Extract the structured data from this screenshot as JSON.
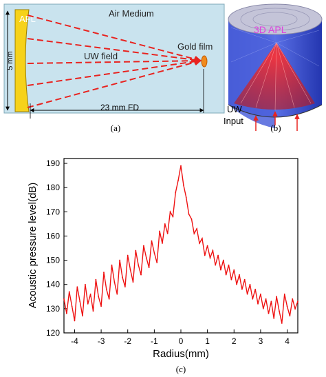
{
  "panel_a": {
    "lens_label": "AFL",
    "medium_label": "Air Medium",
    "field_label": "UW field",
    "target_label": "Gold film",
    "height_dim": "5 mm",
    "distance_dim": "23 mm FD",
    "caption": "(a)",
    "colors": {
      "background": "#c9e3ee",
      "lens": "#f6d21a",
      "rays": "#e8231f",
      "target": "#f08a1c"
    }
  },
  "panel_b": {
    "title": "3D APL",
    "input_label_1": "UW",
    "input_label_2": "Input",
    "caption": "(b)",
    "colors": {
      "title": "#e040e0",
      "cylinder": "#3a52d6",
      "beam": "#d8282a",
      "top_face": "#c4c4d8"
    }
  },
  "panel_c": {
    "caption": "(c)",
    "chart_data": {
      "type": "line",
      "title": "",
      "xlabel": "Radius(mm)",
      "ylabel": "Acoustic pressure level(dB)",
      "xlim": [
        -4.4,
        4.4
      ],
      "ylim": [
        120,
        192
      ],
      "xticks": [
        -4,
        -3,
        -2,
        -1,
        0,
        1,
        2,
        3,
        4
      ],
      "yticks": [
        120,
        130,
        140,
        150,
        160,
        170,
        180,
        190
      ],
      "grid": false,
      "color": "#ee1111",
      "series": [
        {
          "x": [
            -4.4,
            -4.3,
            -4.2,
            -4.1,
            -4.0,
            -3.9,
            -3.8,
            -3.7,
            -3.6,
            -3.5,
            -3.4,
            -3.3,
            -3.2,
            -3.1,
            -3.0,
            -2.9,
            -2.8,
            -2.7,
            -2.6,
            -2.5,
            -2.4,
            -2.3,
            -2.2,
            -2.1,
            -2.0,
            -1.9,
            -1.8,
            -1.7,
            -1.6,
            -1.5,
            -1.4,
            -1.3,
            -1.2,
            -1.1,
            -1.0,
            -0.9,
            -0.8,
            -0.7,
            -0.6,
            -0.5,
            -0.4,
            -0.3,
            -0.2,
            -0.1,
            0.0,
            0.1,
            0.2,
            0.3,
            0.4,
            0.5,
            0.6,
            0.7,
            0.8,
            0.9,
            1.0,
            1.1,
            1.2,
            1.3,
            1.4,
            1.5,
            1.6,
            1.7,
            1.8,
            1.9,
            2.0,
            2.1,
            2.2,
            2.3,
            2.4,
            2.5,
            2.6,
            2.7,
            2.8,
            2.9,
            3.0,
            3.1,
            3.2,
            3.3,
            3.4,
            3.5,
            3.6,
            3.7,
            3.8,
            3.9,
            4.0,
            4.1,
            4.2,
            4.3,
            4.4
          ],
          "values": [
            134,
            128,
            137,
            131,
            125,
            139,
            133,
            127,
            140,
            132,
            136,
            129,
            142,
            135,
            131,
            145,
            138,
            134,
            148,
            141,
            136,
            150,
            143,
            139,
            152,
            146,
            141,
            154,
            148,
            144,
            156,
            151,
            147,
            158,
            153,
            149,
            162,
            157,
            165,
            161,
            170,
            168,
            178,
            183,
            189,
            181,
            176,
            169,
            167,
            161,
            163,
            157,
            159,
            152,
            156,
            151,
            154,
            148,
            152,
            146,
            150,
            144,
            148,
            142,
            146,
            140,
            144,
            138,
            142,
            136,
            140,
            134,
            138,
            132,
            136,
            130,
            134,
            128,
            133,
            126,
            135,
            129,
            124,
            136,
            131,
            127,
            134,
            130,
            133
          ]
        }
      ]
    }
  }
}
